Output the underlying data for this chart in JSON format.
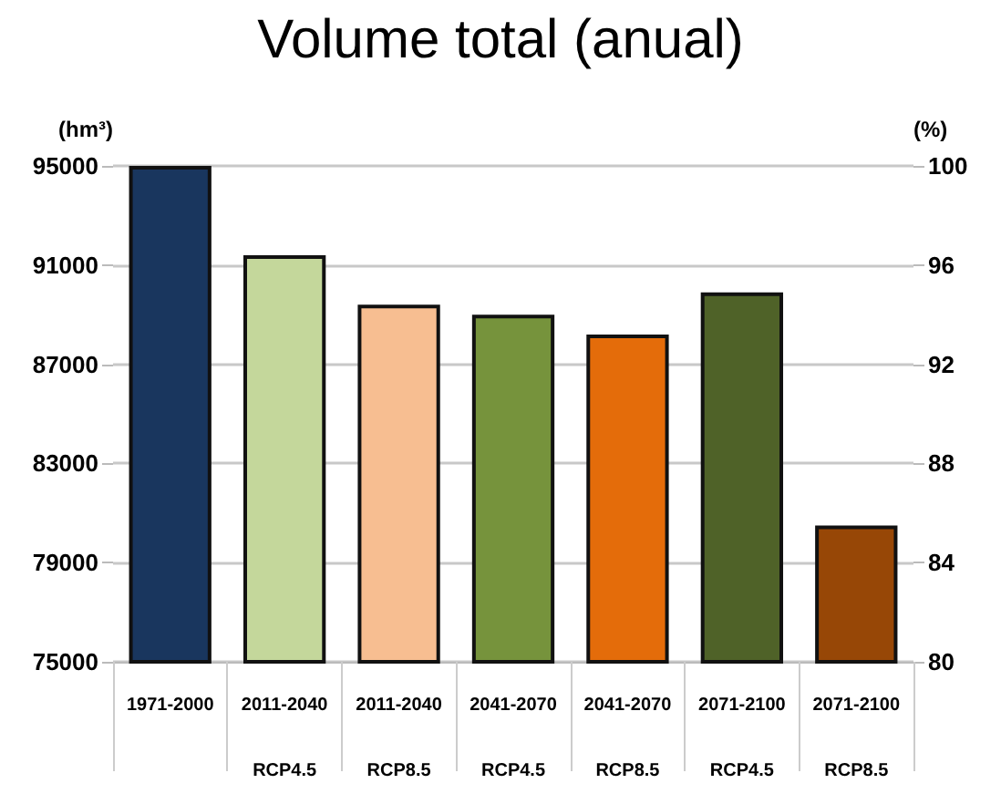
{
  "chart_data": {
    "type": "bar",
    "title": "Volume total (anual)",
    "ylabel": "(hm³)",
    "y2label": "(%)",
    "categories": [
      "1971-2000",
      "2011-2040\nRCP4.5",
      "2011-2040\nRCP8.5",
      "2041-2070\nRCP4.5",
      "2041-2070\nRCP8.5",
      "2071-2100\nRCP4.5",
      "2071-2100\nRCP8.5"
    ],
    "values": [
      95000,
      91400,
      89400,
      89000,
      88200,
      89900,
      80500
    ],
    "colors": [
      "#19365e",
      "#c4d79b",
      "#f7be91",
      "#76933c",
      "#e46c0a",
      "#4f6228",
      "#974706"
    ],
    "ylim": [
      75000,
      95000
    ],
    "yticks": [
      75000,
      79000,
      83000,
      87000,
      91000,
      95000
    ],
    "y2lim": [
      80,
      100
    ],
    "y2ticks": [
      80,
      84,
      88,
      92,
      96,
      100
    ],
    "grid": "y"
  }
}
